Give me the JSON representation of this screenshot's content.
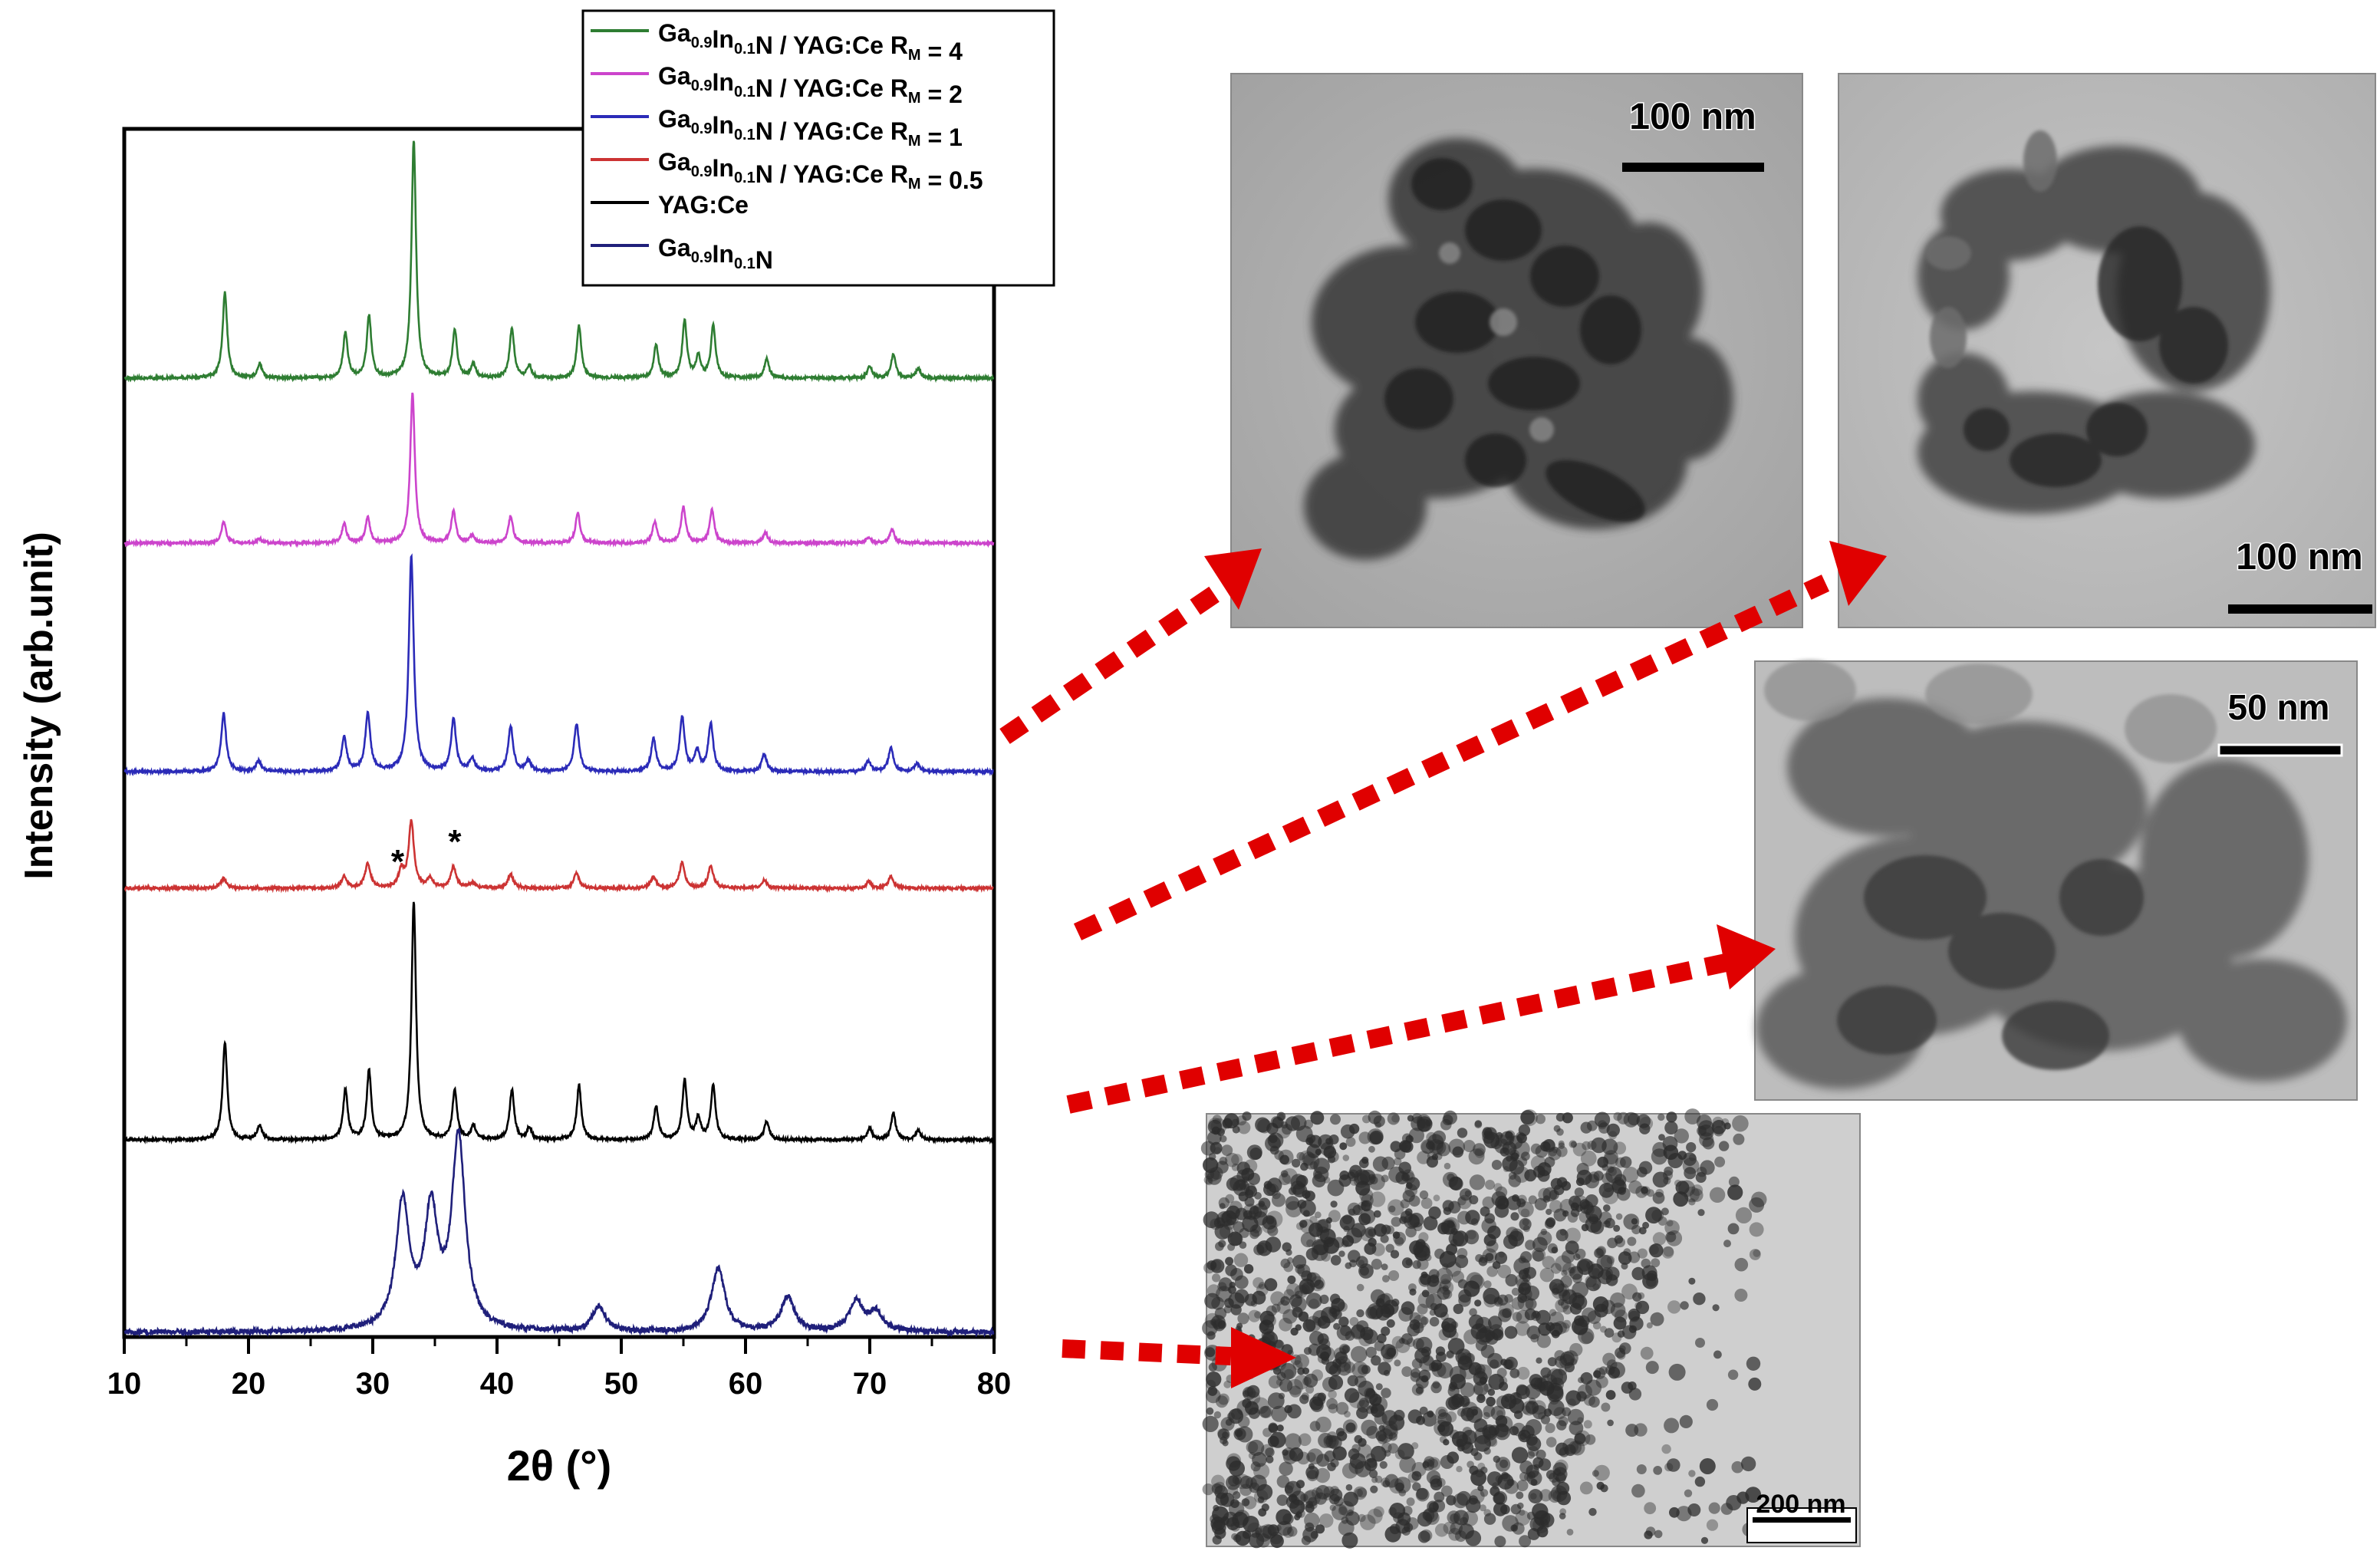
{
  "chart_data": {
    "type": "line",
    "xlabel": "2θ (°)",
    "ylabel": "Intensity (arb.unit)",
    "xlim": [
      10,
      80
    ],
    "xticks": [
      "10",
      "20",
      "30",
      "40",
      "50",
      "60",
      "70",
      "80"
    ],
    "y_ticks_shown": false,
    "grid": false,
    "legend_position": "top-right",
    "stacked_offset": true,
    "series": [
      {
        "name": "Ga0.9In0.1N / YAG:Ce RM = 4",
        "legend": {
          "base": "Ga",
          "s1": "0.9",
          "mid": "In",
          "s2": "0.1",
          "tail": "N / YAG:Ce R",
          "s3": "M",
          "end": " = 4"
        },
        "color": "#2e7d32",
        "peaks": [
          [
            18.1,
            0.36
          ],
          [
            20.9,
            0.06
          ],
          [
            27.8,
            0.19
          ],
          [
            29.7,
            0.26
          ],
          [
            33.3,
            1.0
          ],
          [
            36.6,
            0.2
          ],
          [
            38.1,
            0.06
          ],
          [
            41.2,
            0.21
          ],
          [
            42.6,
            0.05
          ],
          [
            46.6,
            0.22
          ],
          [
            52.8,
            0.14
          ],
          [
            55.1,
            0.24
          ],
          [
            56.2,
            0.09
          ],
          [
            57.4,
            0.22
          ],
          [
            61.7,
            0.08
          ],
          [
            70.0,
            0.05
          ],
          [
            71.9,
            0.1
          ],
          [
            73.9,
            0.04
          ]
        ]
      },
      {
        "name": "Ga0.9In0.1N / YAG:Ce RM = 2",
        "legend": {
          "base": "Ga",
          "s1": "0.9",
          "mid": "In",
          "s2": "0.1",
          "tail": "N / YAG:Ce R",
          "s3": "M",
          "end": " = 2"
        },
        "color": "#cc44cc",
        "peaks": [
          [
            18.0,
            0.14
          ],
          [
            20.9,
            0.03
          ],
          [
            27.7,
            0.13
          ],
          [
            29.6,
            0.17
          ],
          [
            33.2,
            1.0
          ],
          [
            36.5,
            0.21
          ],
          [
            38.0,
            0.05
          ],
          [
            41.1,
            0.18
          ],
          [
            46.5,
            0.2
          ],
          [
            52.7,
            0.14
          ],
          [
            55.0,
            0.24
          ],
          [
            57.3,
            0.22
          ],
          [
            61.6,
            0.07
          ],
          [
            69.9,
            0.04
          ],
          [
            71.8,
            0.09
          ]
        ]
      },
      {
        "name": "Ga0.9In0.1N / YAG:Ce RM = 1",
        "legend": {
          "base": "Ga",
          "s1": "0.9",
          "mid": "In",
          "s2": "0.1",
          "tail": "N / YAG:Ce R",
          "s3": "M",
          "end": " = 1"
        },
        "color": "#2b2bb8",
        "peaks": [
          [
            18.0,
            0.27
          ],
          [
            20.8,
            0.05
          ],
          [
            27.7,
            0.16
          ],
          [
            29.6,
            0.27
          ],
          [
            33.1,
            1.0
          ],
          [
            36.5,
            0.24
          ],
          [
            38.0,
            0.06
          ],
          [
            41.1,
            0.21
          ],
          [
            42.5,
            0.05
          ],
          [
            46.4,
            0.22
          ],
          [
            52.6,
            0.15
          ],
          [
            54.9,
            0.25
          ],
          [
            56.1,
            0.09
          ],
          [
            57.2,
            0.22
          ],
          [
            61.5,
            0.08
          ],
          [
            69.9,
            0.05
          ],
          [
            71.7,
            0.11
          ],
          [
            73.8,
            0.04
          ]
        ]
      },
      {
        "name": "Ga0.9In0.1N / YAG:Ce RM = 0.5",
        "legend": {
          "base": "Ga",
          "s1": "0.9",
          "mid": "In",
          "s2": "0.1",
          "tail": "N / YAG:Ce R",
          "s3": "M",
          "end": " = 0.5"
        },
        "color": "#cc3333",
        "peaks": [
          [
            18.0,
            0.15
          ],
          [
            27.7,
            0.18
          ],
          [
            29.6,
            0.37
          ],
          [
            32.3,
            0.25
          ],
          [
            33.1,
            1.0
          ],
          [
            34.6,
            0.14
          ],
          [
            36.5,
            0.32
          ],
          [
            38.0,
            0.08
          ],
          [
            41.1,
            0.21
          ],
          [
            46.4,
            0.23
          ],
          [
            52.6,
            0.17
          ],
          [
            54.9,
            0.38
          ],
          [
            57.2,
            0.33
          ],
          [
            61.5,
            0.12
          ],
          [
            69.9,
            0.09
          ],
          [
            71.7,
            0.17
          ]
        ]
      },
      {
        "name": "YAG:Ce",
        "legend": {
          "base": "YAG:Ce",
          "s1": "",
          "mid": "",
          "s2": "",
          "tail": "",
          "s3": "",
          "end": ""
        },
        "color": "#000000",
        "peaks": [
          [
            18.1,
            0.41
          ],
          [
            20.9,
            0.06
          ],
          [
            27.8,
            0.21
          ],
          [
            29.7,
            0.29
          ],
          [
            33.3,
            1.0
          ],
          [
            36.6,
            0.21
          ],
          [
            38.1,
            0.06
          ],
          [
            41.2,
            0.21
          ],
          [
            42.6,
            0.05
          ],
          [
            46.6,
            0.23
          ],
          [
            52.8,
            0.14
          ],
          [
            55.1,
            0.25
          ],
          [
            56.2,
            0.09
          ],
          [
            57.4,
            0.23
          ],
          [
            61.7,
            0.08
          ],
          [
            70.0,
            0.05
          ],
          [
            71.9,
            0.11
          ],
          [
            73.9,
            0.04
          ]
        ]
      },
      {
        "name": "Ga0.9In0.1N",
        "legend": {
          "base": "Ga",
          "s1": "0.9",
          "mid": "In",
          "s2": "0.1",
          "tail": "N",
          "s3": "",
          "end": ""
        },
        "color": "#1f1f7a",
        "peaks": [
          [
            32.4,
            0.66
          ],
          [
            34.7,
            0.6
          ],
          [
            36.9,
            1.0
          ],
          [
            48.2,
            0.13
          ],
          [
            57.8,
            0.33
          ],
          [
            63.4,
            0.18
          ],
          [
            68.9,
            0.16
          ],
          [
            70.5,
            0.1
          ]
        ]
      }
    ],
    "annotations": [
      "*",
      "*"
    ],
    "annotation_2theta": [
      32.0,
      36.6
    ]
  },
  "images": [
    {
      "name": "tem-image-top-left",
      "scale_label": "100 nm"
    },
    {
      "name": "tem-image-top-right",
      "scale_label": "100 nm"
    },
    {
      "name": "tem-image-middle-right",
      "scale_label": "50 nm"
    },
    {
      "name": "tem-image-bottom",
      "scale_label": "200 nm"
    }
  ]
}
